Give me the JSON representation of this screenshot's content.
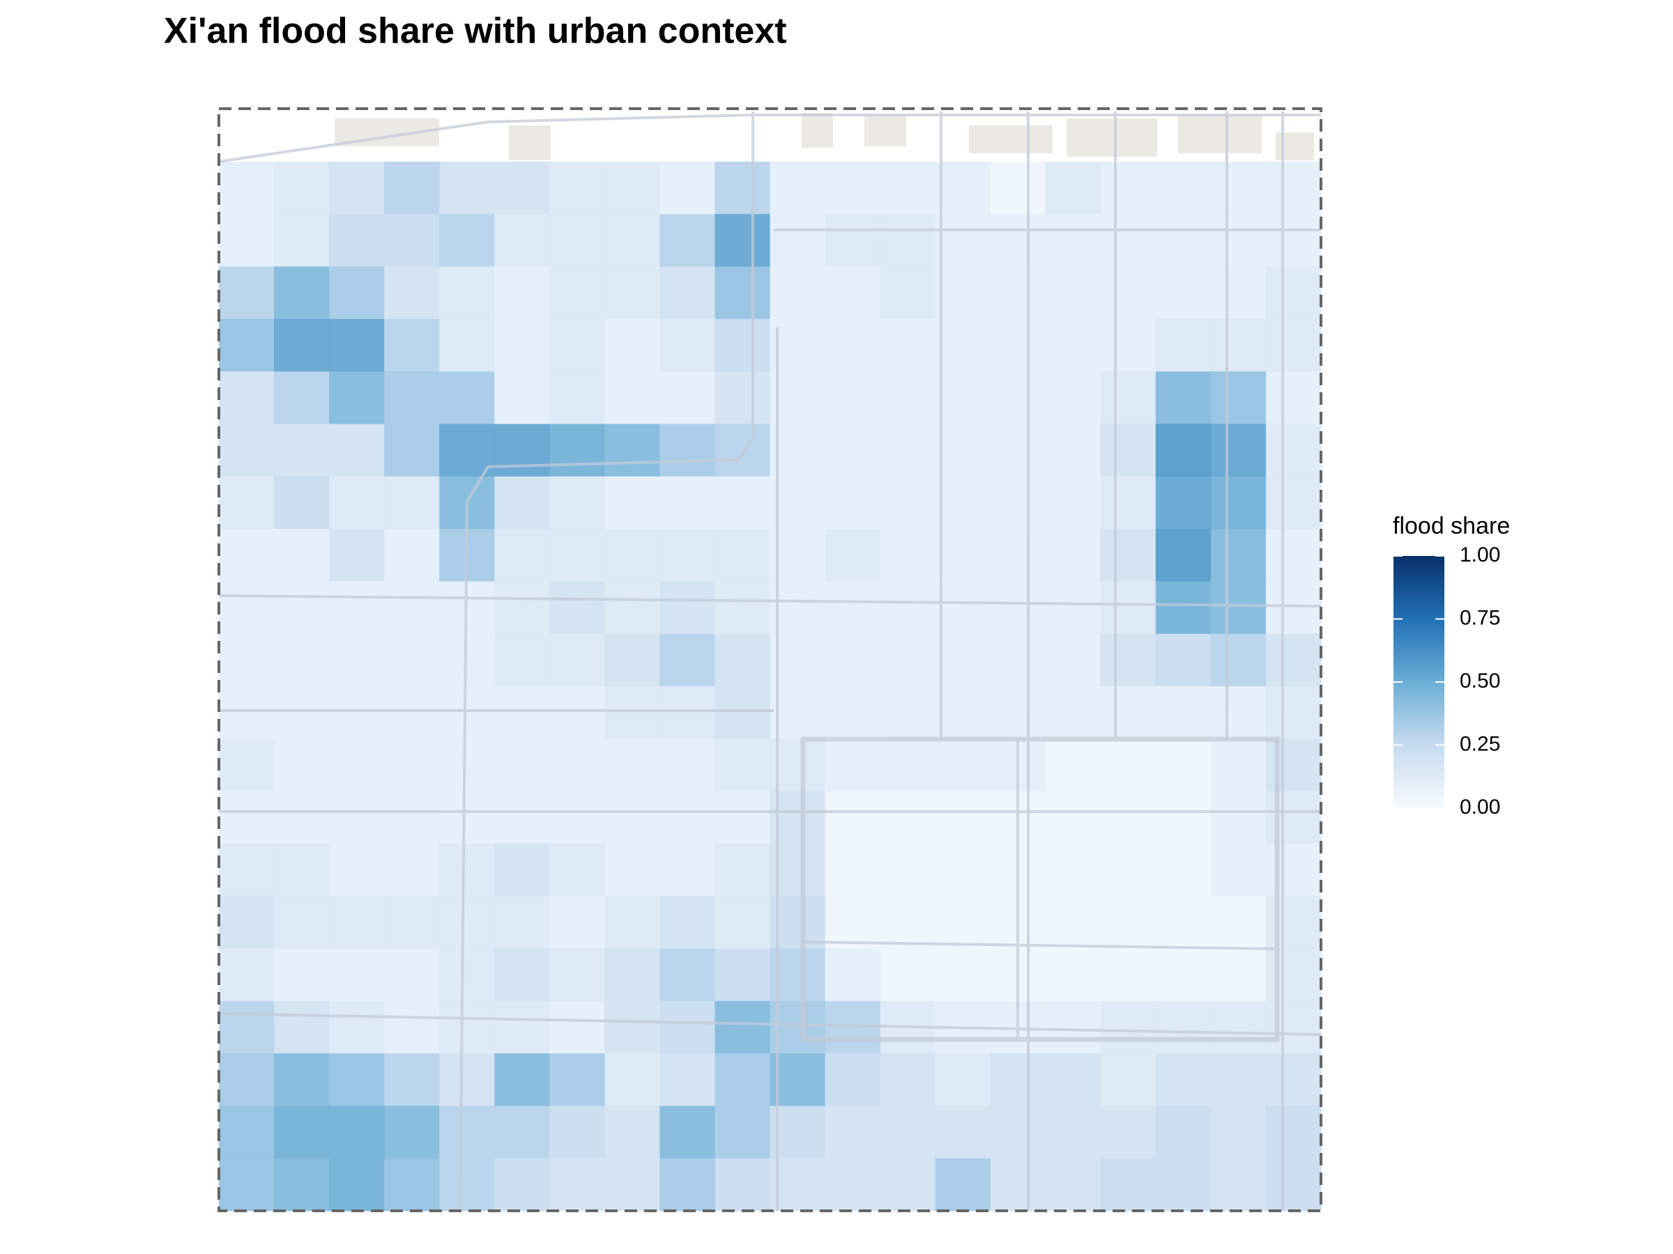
{
  "title": "Xi'an flood share with urban context",
  "legend": {
    "title": "flood share",
    "ticks": [
      {
        "value": 0,
        "label": "0.00"
      },
      {
        "value": 0.25,
        "label": "0.25"
      },
      {
        "value": 0.5,
        "label": "0.50"
      },
      {
        "value": 0.75,
        "label": "0.75"
      },
      {
        "value": 1,
        "label": "1.00"
      }
    ],
    "limits": [
      0,
      1
    ],
    "colors": [
      "#f7fbff",
      "#c6dbef",
      "#6baed6",
      "#2171b5",
      "#08306b"
    ]
  },
  "flood_share": [
    [
      0.1,
      0.15,
      0.2,
      0.3,
      0.2,
      0.2,
      0.15,
      0.15,
      0.1,
      0.3,
      0.1,
      0.1,
      0.1,
      0.1,
      0.05,
      0.15,
      0.1,
      0.1,
      0.1,
      0.1
    ],
    [
      0.1,
      0.15,
      0.25,
      0.25,
      0.3,
      0.15,
      0.15,
      0.15,
      0.3,
      0.55,
      0.1,
      0.15,
      0.15,
      0.1,
      0.1,
      0.1,
      0.1,
      0.1,
      0.1,
      0.1
    ],
    [
      0.3,
      0.45,
      0.35,
      0.2,
      0.15,
      0.1,
      0.15,
      0.15,
      0.2,
      0.4,
      0.1,
      0.1,
      0.15,
      0.1,
      0.1,
      0.1,
      0.1,
      0.1,
      0.1,
      0.15
    ],
    [
      0.4,
      0.55,
      0.55,
      0.3,
      0.15,
      0.1,
      0.15,
      0.1,
      0.15,
      0.25,
      0.1,
      0.1,
      0.1,
      0.1,
      0.1,
      0.1,
      0.1,
      0.15,
      0.15,
      0.15
    ],
    [
      0.2,
      0.3,
      0.45,
      0.35,
      0.35,
      0.1,
      0.15,
      0.1,
      0.1,
      0.2,
      0.1,
      0.1,
      0.1,
      0.1,
      0.1,
      0.1,
      0.15,
      0.45,
      0.4,
      0.1
    ],
    [
      0.2,
      0.2,
      0.2,
      0.35,
      0.55,
      0.55,
      0.5,
      0.45,
      0.35,
      0.3,
      0.1,
      0.1,
      0.1,
      0.1,
      0.1,
      0.1,
      0.2,
      0.6,
      0.55,
      0.15
    ],
    [
      0.15,
      0.25,
      0.15,
      0.15,
      0.45,
      0.2,
      0.15,
      0.1,
      0.1,
      0.1,
      0.1,
      0.1,
      0.1,
      0.1,
      0.1,
      0.1,
      0.15,
      0.55,
      0.5,
      0.15
    ],
    [
      0.1,
      0.1,
      0.2,
      0.1,
      0.35,
      0.15,
      0.15,
      0.15,
      0.15,
      0.15,
      0.1,
      0.15,
      0.1,
      0.1,
      0.1,
      0.1,
      0.2,
      0.6,
      0.45,
      0.1
    ],
    [
      0.1,
      0.1,
      0.1,
      0.1,
      0.1,
      0.15,
      0.2,
      0.15,
      0.2,
      0.15,
      0.1,
      0.1,
      0.1,
      0.1,
      0.1,
      0.1,
      0.15,
      0.5,
      0.45,
      0.1
    ],
    [
      0.1,
      0.1,
      0.1,
      0.1,
      0.1,
      0.15,
      0.15,
      0.2,
      0.3,
      0.2,
      0.1,
      0.1,
      0.1,
      0.1,
      0.1,
      0.1,
      0.2,
      0.25,
      0.3,
      0.2
    ],
    [
      0.1,
      0.1,
      0.1,
      0.1,
      0.1,
      0.1,
      0.1,
      0.15,
      0.15,
      0.2,
      0.1,
      0.1,
      0.1,
      0.1,
      0.1,
      0.1,
      0.1,
      0.1,
      0.1,
      0.15
    ],
    [
      0.15,
      0.1,
      0.1,
      0.1,
      0.1,
      0.1,
      0.1,
      0.1,
      0.1,
      0.15,
      0.15,
      0.1,
      0.1,
      0.1,
      0.1,
      0.05,
      0.05,
      0.05,
      0.1,
      0.2
    ],
    [
      0.1,
      0.1,
      0.1,
      0.1,
      0.1,
      0.1,
      0.1,
      0.1,
      0.1,
      0.1,
      0.2,
      0.05,
      0.05,
      0.05,
      0.05,
      0.05,
      0.05,
      0.05,
      0.1,
      0.15
    ],
    [
      0.15,
      0.15,
      0.1,
      0.1,
      0.15,
      0.2,
      0.15,
      0.1,
      0.1,
      0.15,
      0.2,
      0.05,
      0.05,
      0.05,
      0.05,
      0.05,
      0.05,
      0.05,
      0.1,
      0.1
    ],
    [
      0.2,
      0.15,
      0.15,
      0.15,
      0.15,
      0.15,
      0.1,
      0.15,
      0.2,
      0.15,
      0.25,
      0.05,
      0.05,
      0.05,
      0.05,
      0.05,
      0.05,
      0.05,
      0.05,
      0.15
    ],
    [
      0.15,
      0.1,
      0.1,
      0.1,
      0.15,
      0.2,
      0.15,
      0.2,
      0.3,
      0.25,
      0.3,
      0.1,
      0.05,
      0.05,
      0.05,
      0.05,
      0.05,
      0.05,
      0.05,
      0.15
    ],
    [
      0.3,
      0.2,
      0.15,
      0.1,
      0.15,
      0.15,
      0.1,
      0.2,
      0.25,
      0.45,
      0.35,
      0.3,
      0.15,
      0.1,
      0.1,
      0.1,
      0.15,
      0.15,
      0.15,
      0.15
    ],
    [
      0.35,
      0.45,
      0.4,
      0.3,
      0.2,
      0.45,
      0.35,
      0.15,
      0.2,
      0.35,
      0.45,
      0.25,
      0.2,
      0.15,
      0.2,
      0.2,
      0.15,
      0.2,
      0.2,
      0.2
    ],
    [
      0.4,
      0.5,
      0.5,
      0.45,
      0.3,
      0.3,
      0.25,
      0.2,
      0.45,
      0.35,
      0.25,
      0.2,
      0.2,
      0.2,
      0.2,
      0.2,
      0.2,
      0.25,
      0.2,
      0.25
    ],
    [
      0.4,
      0.45,
      0.5,
      0.4,
      0.3,
      0.25,
      0.2,
      0.2,
      0.35,
      0.25,
      0.2,
      0.2,
      0.2,
      0.35,
      0.2,
      0.2,
      0.25,
      0.25,
      0.2,
      0.25
    ]
  ]
}
